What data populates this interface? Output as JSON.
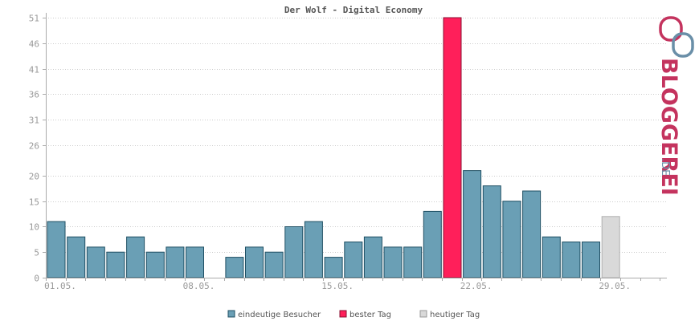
{
  "chart_data": {
    "type": "bar",
    "title": "Der Wolf - Digital Economy",
    "xlabel": "",
    "ylabel": "",
    "ylim": [
      0,
      51
    ],
    "yticks": [
      0,
      5,
      10,
      15,
      20,
      26,
      31,
      36,
      41,
      46,
      51
    ],
    "grid": true,
    "legend_position": "bottom",
    "categories": [
      "01.05.",
      "02.05.",
      "03.05.",
      "04.05.",
      "05.05.",
      "06.05.",
      "07.05.",
      "08.05.",
      "09.05.",
      "10.05.",
      "11.05.",
      "12.05.",
      "13.05.",
      "14.05.",
      "15.05.",
      "16.05.",
      "17.05.",
      "18.05.",
      "19.05.",
      "20.05.",
      "21.05.",
      "22.05.",
      "23.05.",
      "24.05.",
      "25.05.",
      "26.05.",
      "27.05.",
      "28.05.",
      "29.05.",
      "30.05.",
      "31.05."
    ],
    "xtick_labels": [
      {
        "index": 0,
        "label": "01.05."
      },
      {
        "index": 7,
        "label": "08.05."
      },
      {
        "index": 14,
        "label": "15.05."
      },
      {
        "index": 21,
        "label": "22.05."
      },
      {
        "index": 28,
        "label": "29.05."
      }
    ],
    "series": [
      {
        "name": "eindeutige Besucher",
        "values": [
          11,
          8,
          6,
          5,
          8,
          5,
          6,
          6,
          0,
          4,
          6,
          5,
          10,
          11,
          4,
          7,
          8,
          6,
          6,
          13,
          51,
          21,
          18,
          15,
          17,
          8,
          7,
          7,
          12,
          0,
          0
        ]
      }
    ],
    "best_day_index": 20,
    "today_index": 28,
    "legend": [
      {
        "label": "eindeutige Besucher",
        "color": "#6a9fb5"
      },
      {
        "label": "bester Tag",
        "color": "#ff1f5a"
      },
      {
        "label": "heutiger Tag",
        "color": "#d9d9d9"
      }
    ],
    "colors": {
      "normal": "#6a9fb5",
      "best": "#ff1f5a",
      "today": "#d9d9d9",
      "grid": "#cccccc",
      "axis": "#aaaaaa"
    }
  },
  "brand": {
    "name": "BLOGGEREI",
    "suffix": ".DE",
    "color_primary": "#c4335e",
    "color_secondary": "#6a8fa8",
    "logo_icon": "bloggerei-logo-icon"
  }
}
